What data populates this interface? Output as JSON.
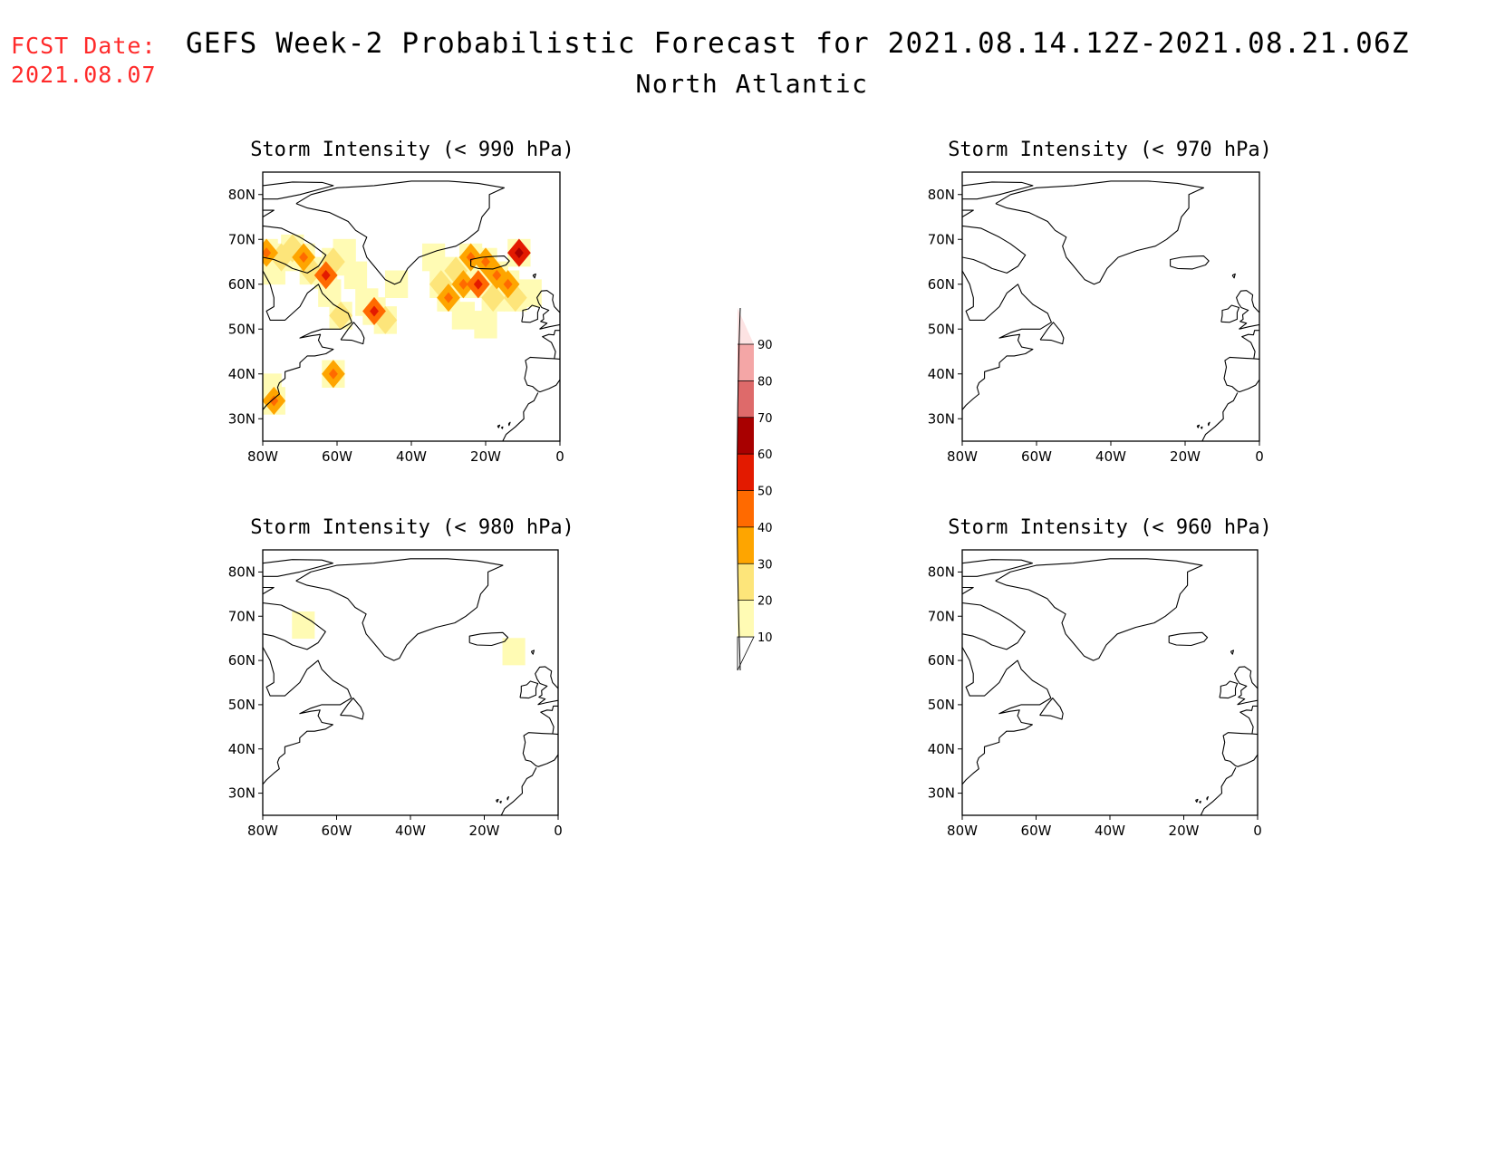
{
  "header": {
    "fcst_label": "FCST Date:",
    "fcst_value": "2021.08.07",
    "title": "GEFS Week-2 Probabilistic Forecast for 2021.08.14.12Z-2021.08.21.06Z",
    "subtitle": "North Atlantic"
  },
  "map": {
    "lon_range": [
      -80,
      0
    ],
    "lat_range": [
      25,
      85
    ],
    "lon_ticks": [
      -80,
      -60,
      -40,
      -20,
      0
    ],
    "lon_labels": [
      "80W",
      "60W",
      "40W",
      "20W",
      "0"
    ],
    "lat_ticks": [
      30,
      40,
      50,
      60,
      70,
      80
    ],
    "lat_labels": [
      "30N",
      "40N",
      "50N",
      "60N",
      "70N",
      "80N"
    ]
  },
  "colorbar": {
    "levels": [
      "10",
      "20",
      "30",
      "40",
      "50",
      "60",
      "70",
      "80",
      "90"
    ],
    "colors": [
      "#fffbb4",
      "#fde57a",
      "#fea500",
      "#ff6a00",
      "#e31a00",
      "#a80000",
      "#de6a6a",
      "#f4a6a6",
      "#fde3e3"
    ]
  },
  "panels": [
    {
      "title": "Storm Intensity (< 990 hPa)",
      "cells": [
        {
          "lon": -79,
          "lat": 67,
          "v": 3
        },
        {
          "lon": -77,
          "lat": 63,
          "v": 1
        },
        {
          "lon": -75,
          "lat": 66,
          "v": 2
        },
        {
          "lon": -72,
          "lat": 68,
          "v": 2
        },
        {
          "lon": -69,
          "lat": 66,
          "v": 3
        },
        {
          "lon": -67,
          "lat": 63,
          "v": 2
        },
        {
          "lon": -63,
          "lat": 62,
          "v": 4
        },
        {
          "lon": -61,
          "lat": 65,
          "v": 2
        },
        {
          "lon": -58,
          "lat": 67,
          "v": 1
        },
        {
          "lon": -55,
          "lat": 62,
          "v": 1
        },
        {
          "lon": -62,
          "lat": 58,
          "v": 1
        },
        {
          "lon": -59,
          "lat": 53,
          "v": 2
        },
        {
          "lon": -52,
          "lat": 56,
          "v": 1
        },
        {
          "lon": -50,
          "lat": 54,
          "v": 4
        },
        {
          "lon": -47,
          "lat": 52,
          "v": 2
        },
        {
          "lon": -44,
          "lat": 60,
          "v": 1
        },
        {
          "lon": -34,
          "lat": 66,
          "v": 1
        },
        {
          "lon": -32,
          "lat": 60,
          "v": 2
        },
        {
          "lon": -30,
          "lat": 57,
          "v": 3
        },
        {
          "lon": -28,
          "lat": 63,
          "v": 2
        },
        {
          "lon": -26,
          "lat": 60,
          "v": 3
        },
        {
          "lon": -24,
          "lat": 66,
          "v": 3
        },
        {
          "lon": -22,
          "lat": 60,
          "v": 4
        },
        {
          "lon": -20,
          "lat": 65,
          "v": 3
        },
        {
          "lon": -18,
          "lat": 57,
          "v": 2
        },
        {
          "lon": -17,
          "lat": 62,
          "v": 3
        },
        {
          "lon": -14,
          "lat": 60,
          "v": 3
        },
        {
          "lon": -12,
          "lat": 57,
          "v": 2
        },
        {
          "lon": -11,
          "lat": 67,
          "v": 5
        },
        {
          "lon": -8,
          "lat": 58,
          "v": 1
        },
        {
          "lon": -26,
          "lat": 53,
          "v": 1
        },
        {
          "lon": -20,
          "lat": 51,
          "v": 1
        },
        {
          "lon": -61,
          "lat": 40,
          "v": 3
        },
        {
          "lon": -77,
          "lat": 34,
          "v": 3
        },
        {
          "lon": -78,
          "lat": 37,
          "v": 1
        }
      ]
    },
    {
      "title": "Storm Intensity (< 970 hPa)",
      "cells": []
    },
    {
      "title": "Storm Intensity (< 980 hPa)",
      "cells": [
        {
          "lon": -69,
          "lat": 68,
          "v": 1
        },
        {
          "lon": -12,
          "lat": 62,
          "v": 1
        }
      ]
    },
    {
      "title": "Storm Intensity (< 960 hPa)",
      "cells": []
    }
  ]
}
